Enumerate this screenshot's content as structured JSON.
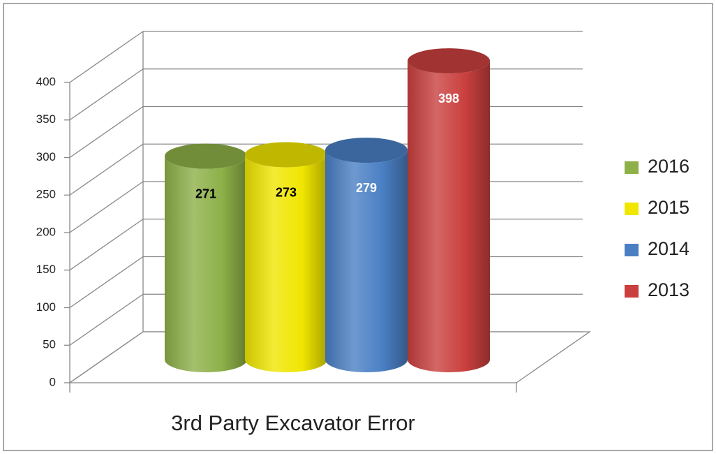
{
  "chart_data": {
    "type": "bar3d_cylinder",
    "categories": [
      "3rd Party Excavator Error"
    ],
    "series": [
      {
        "name": "2016",
        "color": "#8db048",
        "values": [
          271
        ]
      },
      {
        "name": "2015",
        "color": "#f0e600",
        "values": [
          273
        ]
      },
      {
        "name": "2014",
        "color": "#4a7fc4",
        "values": [
          279
        ]
      },
      {
        "name": "2013",
        "color": "#c9403e",
        "values": [
          398
        ]
      }
    ],
    "ylim": [
      0,
      400
    ],
    "yticks": [
      0,
      50,
      100,
      150,
      200,
      250,
      300,
      350,
      400
    ],
    "grid": true,
    "legend": "right"
  }
}
